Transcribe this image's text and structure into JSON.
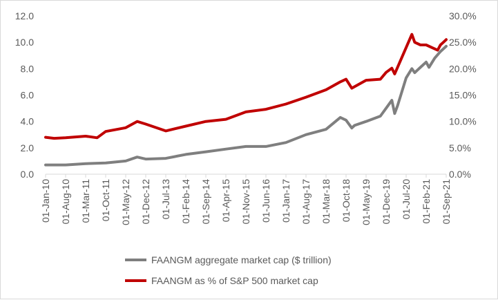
{
  "chart_data": {
    "type": "line",
    "title": "",
    "xlabel": "",
    "ylabel_left": "",
    "ylabel_right": "",
    "ylim_left": [
      0,
      12
    ],
    "ylim_right": [
      0,
      30
    ],
    "yticks_left": [
      "0.0",
      "2.0",
      "4.0",
      "6.0",
      "8.0",
      "10.0",
      "12.0"
    ],
    "yticks_right": [
      "0.0%",
      "5.0%",
      "10.0%",
      "15.0%",
      "20.0%",
      "25.0%",
      "30.0%"
    ],
    "xticks": [
      "01-Jan-10",
      "01-Aug-10",
      "01-Mar-11",
      "01-Oct-11",
      "01-May-12",
      "01-Dec-12",
      "01-Jul-13",
      "01-Feb-14",
      "01-Sep-14",
      "01-Apr-15",
      "01-Nov-15",
      "01-Jun-16",
      "01-Jan-17",
      "01-Aug-17",
      "01-Mar-18",
      "01-Oct-18",
      "01-May-19",
      "01-Dec-19",
      "01-Jul-20",
      "01-Feb-21",
      "01-Sep-21"
    ],
    "grid": false,
    "legend_position": "bottom",
    "series": [
      {
        "name": "FAANGM aggregate market cap ($ trillion)",
        "axis": "left",
        "color": "#7f7f7f",
        "x": [
          "01-Jan-10",
          "01-Apr-10",
          "01-Aug-10",
          "01-Mar-11",
          "01-Oct-11",
          "01-May-12",
          "01-Sep-12",
          "01-Dec-12",
          "01-Jul-13",
          "01-Feb-14",
          "01-Sep-14",
          "01-Apr-15",
          "01-Nov-15",
          "01-Jun-16",
          "01-Jan-17",
          "01-Aug-17",
          "01-Mar-18",
          "01-Aug-18",
          "01-Oct-18",
          "01-Dec-18",
          "01-Jan-19",
          "01-May-19",
          "01-Oct-19",
          "01-Dec-19",
          "01-Feb-20",
          "01-Mar-20",
          "01-Apr-20",
          "01-Jul-20",
          "01-Sep-20",
          "01-Oct-20",
          "01-Nov-20",
          "01-Dec-20",
          "01-Feb-21",
          "01-Mar-21",
          "01-May-21",
          "01-Jul-21",
          "01-Aug-21",
          "01-Sep-21"
        ],
        "values": [
          0.7,
          0.7,
          0.7,
          0.8,
          0.85,
          1.0,
          1.3,
          1.15,
          1.2,
          1.5,
          1.7,
          1.9,
          2.1,
          2.1,
          2.4,
          3.0,
          3.4,
          4.3,
          4.1,
          3.5,
          3.7,
          4.0,
          4.4,
          5.0,
          5.6,
          4.6,
          5.2,
          7.3,
          8.0,
          7.7,
          7.9,
          8.1,
          8.5,
          8.1,
          8.8,
          9.3,
          9.5,
          9.7
        ]
      },
      {
        "name": "FAANGM as % of S&P 500 market cap",
        "axis": "right",
        "color": "#c00000",
        "x": [
          "01-Jan-10",
          "01-Apr-10",
          "01-Aug-10",
          "01-Mar-11",
          "01-Jul-11",
          "01-Oct-11",
          "01-May-12",
          "01-Sep-12",
          "01-Dec-12",
          "01-Jul-13",
          "01-Feb-14",
          "01-Sep-14",
          "01-Apr-15",
          "01-Nov-15",
          "01-Jun-16",
          "01-Jan-17",
          "01-Aug-17",
          "01-Mar-18",
          "01-Aug-18",
          "01-Oct-18",
          "01-Dec-18",
          "01-May-19",
          "01-Oct-19",
          "01-Dec-19",
          "01-Feb-20",
          "01-Mar-20",
          "01-May-20",
          "01-Jul-20",
          "01-Sep-20",
          "01-Oct-20",
          "01-Dec-20",
          "01-Feb-21",
          "01-Apr-21",
          "01-Jun-21",
          "01-Jul-21",
          "01-Aug-21",
          "01-Sep-21"
        ],
        "values": [
          7.0,
          6.8,
          6.9,
          7.2,
          6.9,
          8.1,
          8.8,
          10.0,
          9.5,
          8.2,
          9.1,
          10.0,
          10.4,
          11.8,
          12.3,
          13.3,
          14.6,
          16.0,
          17.5,
          18.0,
          16.3,
          17.8,
          18.0,
          19.3,
          20.1,
          19.0,
          21.5,
          24.0,
          26.5,
          25.0,
          24.5,
          24.5,
          24.0,
          23.5,
          24.5,
          25.0,
          25.5
        ]
      }
    ]
  }
}
